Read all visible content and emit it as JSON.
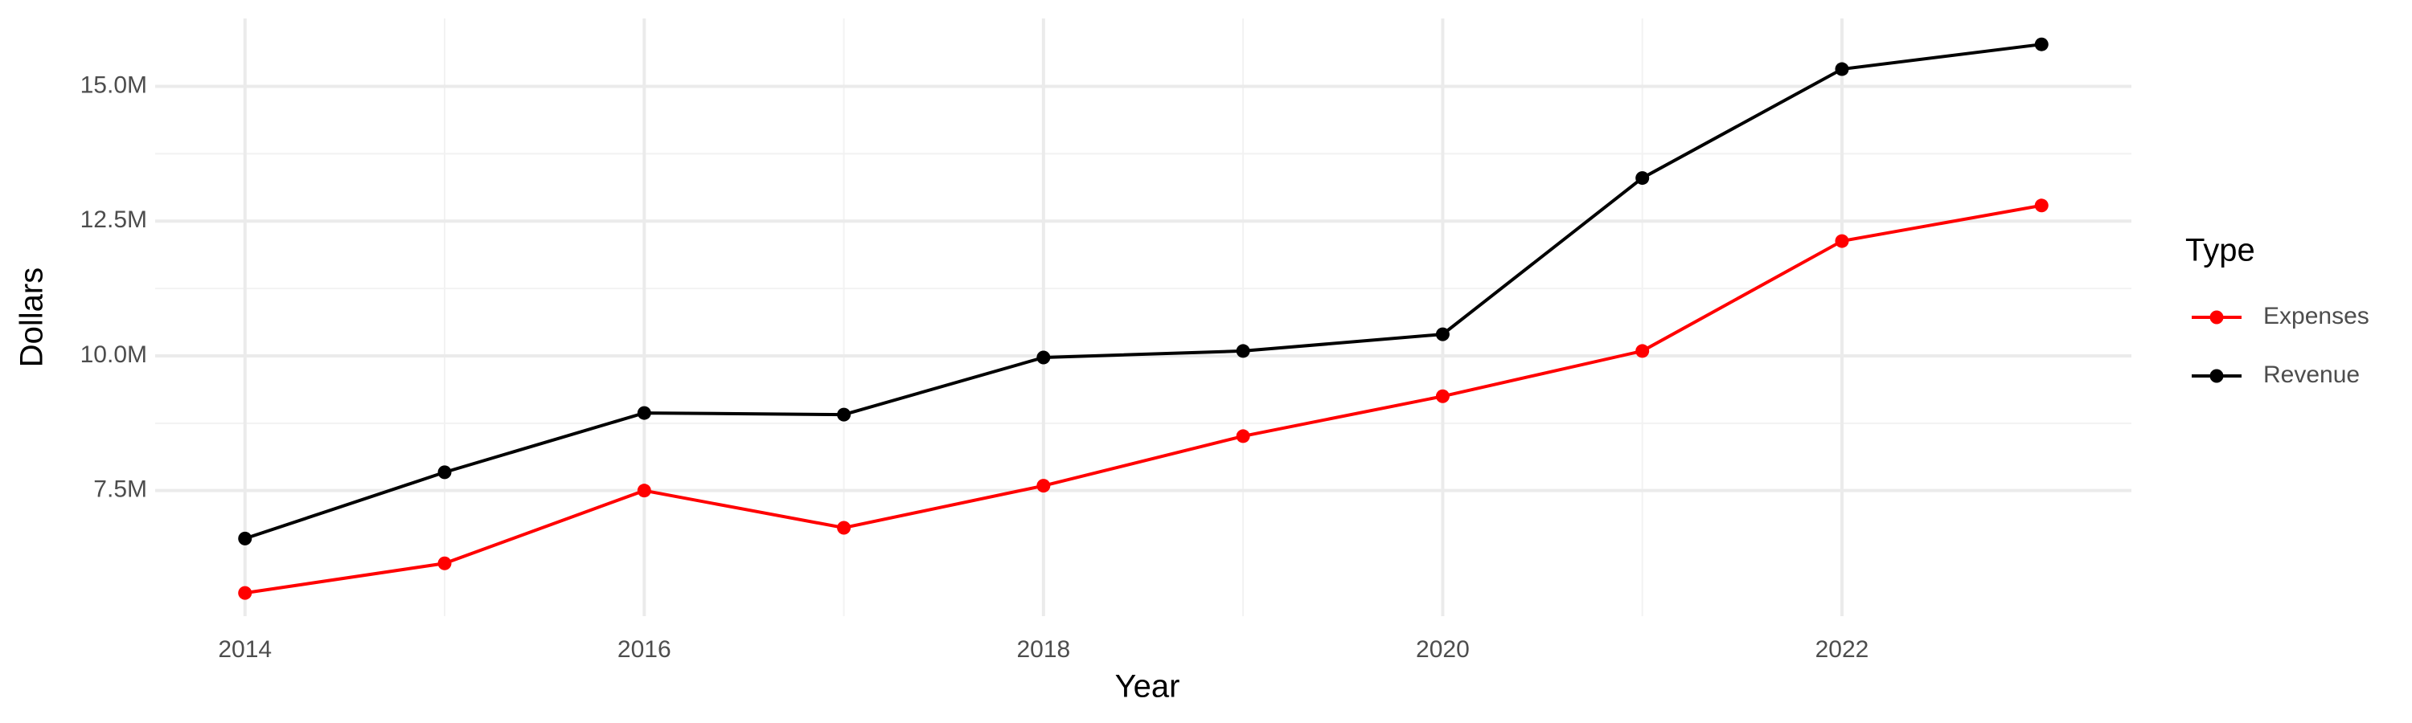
{
  "chart_data": {
    "type": "line",
    "x_label": "Year",
    "y_label": "Dollars",
    "x": [
      2014,
      2015,
      2016,
      2017,
      2018,
      2019,
      2020,
      2021,
      2022,
      2023
    ],
    "series": [
      {
        "name": "Expenses",
        "color": "#ff0000",
        "values": [
          5600000,
          6150000,
          7500000,
          6810000,
          7590000,
          8510000,
          9250000,
          10090000,
          12130000,
          12790000
        ]
      },
      {
        "name": "Revenue",
        "color": "#000000",
        "values": [
          6610000,
          7840000,
          8940000,
          8910000,
          9970000,
          10090000,
          10400000,
          13300000,
          15320000,
          15780000
        ]
      }
    ],
    "xlim": [
      2013.55,
      2023.45
    ],
    "ylim": [
      5170000,
      16260000
    ],
    "xticks": [
      2014,
      2016,
      2018,
      2020,
      2022
    ],
    "yticks": [
      {
        "value": 7500000,
        "label": "7.5M"
      },
      {
        "value": 10000000,
        "label": "10.0M"
      },
      {
        "value": 12500000,
        "label": "12.5M"
      },
      {
        "value": 15000000,
        "label": "15.0M"
      }
    ],
    "grid": true,
    "minor_grid": true,
    "legend_title": "Type",
    "legend_position": "right"
  }
}
